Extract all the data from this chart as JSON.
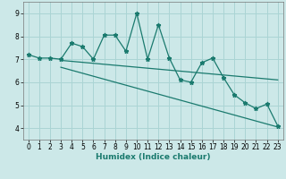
{
  "xlabel": "Humidex (Indice chaleur)",
  "bg_color": "#cce8e8",
  "grid_color": "#aad4d4",
  "line_color": "#1a7a6e",
  "x_data": [
    0,
    1,
    2,
    3,
    4,
    5,
    6,
    7,
    8,
    9,
    10,
    11,
    12,
    13,
    14,
    15,
    16,
    17,
    18,
    19,
    20,
    21,
    22,
    23
  ],
  "y_main": [
    7.2,
    7.05,
    7.05,
    7.0,
    7.7,
    7.55,
    7.0,
    8.05,
    8.05,
    7.35,
    9.0,
    7.0,
    8.5,
    7.05,
    6.1,
    6.0,
    6.85,
    7.05,
    6.2,
    5.45,
    5.1,
    4.85,
    5.05,
    4.1
  ],
  "y_trend1_x": [
    3,
    23
  ],
  "y_trend1_y": [
    6.95,
    6.1
  ],
  "y_trend2_x": [
    3,
    23
  ],
  "y_trend2_y": [
    6.65,
    4.05
  ],
  "xlim": [
    -0.5,
    23.5
  ],
  "ylim": [
    3.5,
    9.5
  ],
  "yticks": [
    4,
    5,
    6,
    7,
    8,
    9
  ],
  "xticks": [
    0,
    1,
    2,
    3,
    4,
    5,
    6,
    7,
    8,
    9,
    10,
    11,
    12,
    13,
    14,
    15,
    16,
    17,
    18,
    19,
    20,
    21,
    22,
    23
  ],
  "tick_fontsize": 5.5,
  "xlabel_fontsize": 6.5
}
